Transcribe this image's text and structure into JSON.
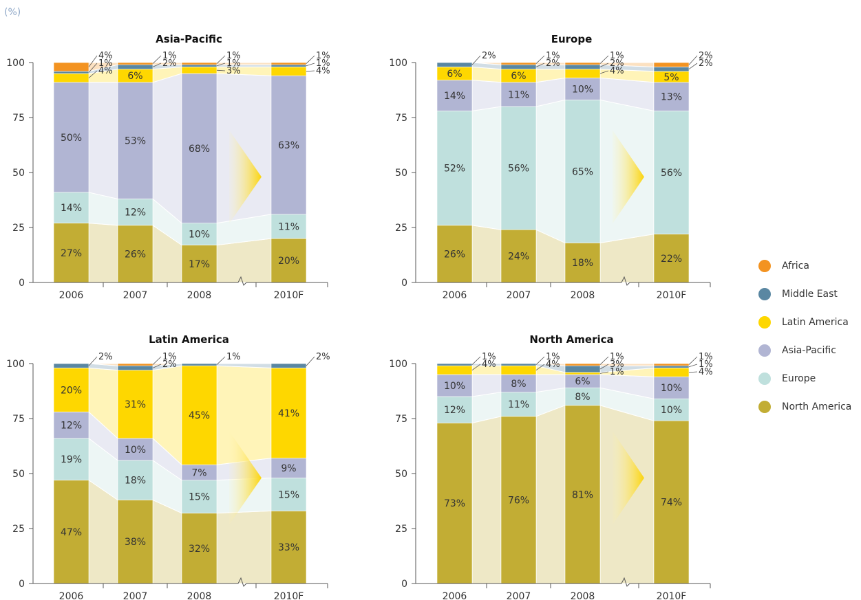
{
  "unit_label": "(%)",
  "colors": {
    "Africa": "#f39321",
    "Middle East": "#5a87a2",
    "Latin America": "#fed700",
    "Asia-Pacific": "#b1b5d3",
    "Europe": "#bfe0dd",
    "North America": "#c2ad34"
  },
  "legend": [
    "Africa",
    "Middle East",
    "Latin America",
    "Asia-Pacific",
    "Europe",
    "North America"
  ],
  "chart_data": [
    {
      "type": "bar",
      "stacked": true,
      "title": "Asia-Pacific",
      "categories": [
        "2006",
        "2007",
        "2008",
        "2010F"
      ],
      "ylim": [
        0,
        100
      ],
      "yticks": [
        0,
        25,
        50,
        75,
        100
      ],
      "series": [
        {
          "name": "North America",
          "values": [
            27,
            26,
            17,
            20
          ]
        },
        {
          "name": "Europe",
          "values": [
            14,
            12,
            10,
            11
          ]
        },
        {
          "name": "Asia-Pacific",
          "values": [
            50,
            53,
            68,
            63
          ]
        },
        {
          "name": "Latin America",
          "values": [
            4,
            6,
            3,
            4
          ]
        },
        {
          "name": "Middle East",
          "values": [
            1,
            2,
            1,
            1
          ]
        },
        {
          "name": "Africa",
          "values": [
            4,
            1,
            1,
            1
          ]
        }
      ]
    },
    {
      "type": "bar",
      "stacked": true,
      "title": "Europe",
      "categories": [
        "2006",
        "2007",
        "2008",
        "2010F"
      ],
      "ylim": [
        0,
        100
      ],
      "yticks": [
        0,
        25,
        50,
        75,
        100
      ],
      "series": [
        {
          "name": "North America",
          "values": [
            26,
            24,
            18,
            22
          ]
        },
        {
          "name": "Europe",
          "values": [
            52,
            56,
            65,
            56
          ]
        },
        {
          "name": "Asia-Pacific",
          "values": [
            14,
            11,
            10,
            13
          ]
        },
        {
          "name": "Latin America",
          "values": [
            6,
            6,
            4,
            5
          ]
        },
        {
          "name": "Middle East",
          "values": [
            2,
            2,
            2,
            2
          ]
        },
        {
          "name": "Africa",
          "values": [
            0,
            1,
            1,
            2
          ]
        }
      ]
    },
    {
      "type": "bar",
      "stacked": true,
      "title": "Latin America",
      "categories": [
        "2006",
        "2007",
        "2008",
        "2010F"
      ],
      "ylim": [
        0,
        100
      ],
      "yticks": [
        0,
        25,
        50,
        75,
        100
      ],
      "series": [
        {
          "name": "North America",
          "values": [
            47,
            38,
            32,
            33
          ]
        },
        {
          "name": "Europe",
          "values": [
            19,
            18,
            15,
            15
          ]
        },
        {
          "name": "Asia-Pacific",
          "values": [
            12,
            10,
            7,
            9
          ]
        },
        {
          "name": "Latin America",
          "values": [
            20,
            31,
            45,
            41
          ]
        },
        {
          "name": "Middle East",
          "values": [
            2,
            2,
            1,
            2
          ]
        },
        {
          "name": "Africa",
          "values": [
            0,
            1,
            0,
            0
          ]
        }
      ]
    },
    {
      "type": "bar",
      "stacked": true,
      "title": "North America",
      "categories": [
        "2006",
        "2007",
        "2008",
        "2010F"
      ],
      "ylim": [
        0,
        100
      ],
      "yticks": [
        0,
        25,
        50,
        75,
        100
      ],
      "series": [
        {
          "name": "North America",
          "values": [
            73,
            76,
            81,
            74
          ]
        },
        {
          "name": "Europe",
          "values": [
            12,
            11,
            8,
            10
          ]
        },
        {
          "name": "Asia-Pacific",
          "values": [
            10,
            8,
            6,
            10
          ]
        },
        {
          "name": "Latin America",
          "values": [
            4,
            4,
            1,
            4
          ]
        },
        {
          "name": "Middle East",
          "values": [
            1,
            1,
            3,
            1
          ]
        },
        {
          "name": "Africa",
          "values": [
            0,
            0,
            1,
            1
          ]
        }
      ]
    }
  ]
}
